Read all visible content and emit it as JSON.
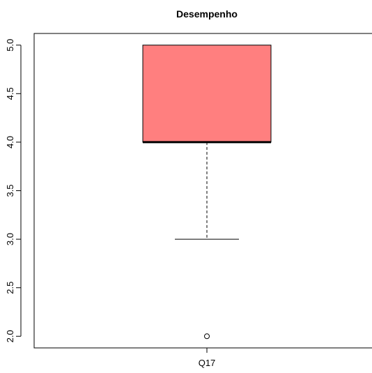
{
  "chart_data": {
    "type": "boxplot",
    "title": "Desempenho",
    "xlabel": "",
    "ylabel": "",
    "categories": [
      "Q17"
    ],
    "ylim": [
      1.88,
      5.12
    ],
    "yticks": [
      2.0,
      2.5,
      3.0,
      3.5,
      4.0,
      4.5,
      5.0
    ],
    "ytick_labels": [
      "2.0",
      "2.5",
      "3.0",
      "3.5",
      "4.0",
      "4.5",
      "5.0"
    ],
    "boxes": [
      {
        "category": "Q17",
        "whisker_low": 3.0,
        "q1": 4.0,
        "median": 4.0,
        "q3": 5.0,
        "whisker_high": 5.0,
        "outliers": [
          2.0
        ]
      }
    ],
    "box_color": "#ff7f7f",
    "grid": false,
    "legend": "none"
  }
}
